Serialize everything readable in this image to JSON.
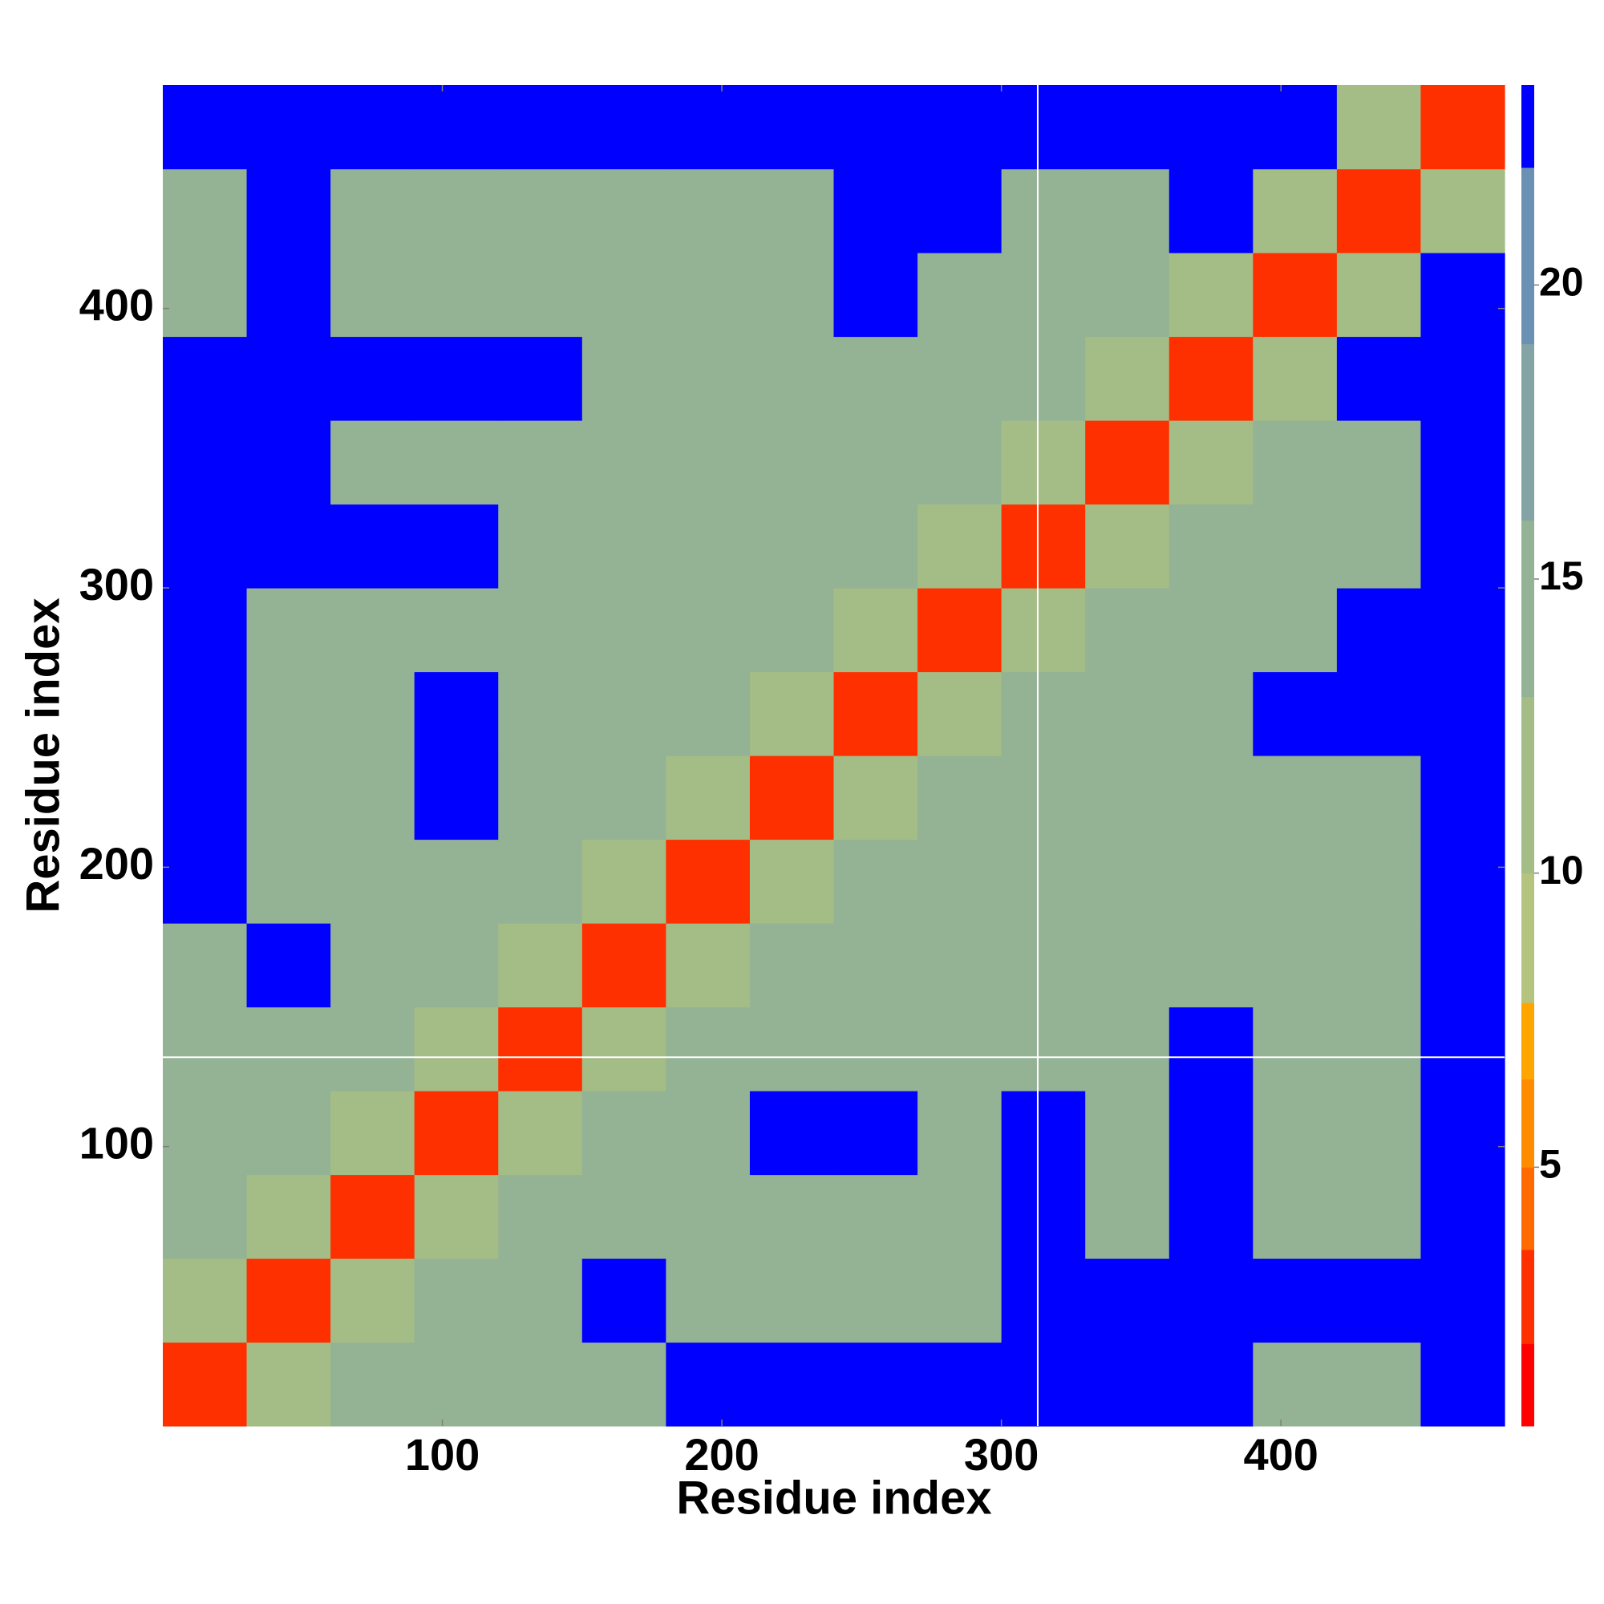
{
  "chart_data": {
    "type": "heatmap",
    "x_label": "Residue index",
    "y_label": "Residue index",
    "xlim": [
      0,
      480
    ],
    "ylim": [
      0,
      480
    ],
    "xticks": [
      100,
      200,
      300,
      400
    ],
    "yticks": [
      100,
      200,
      300,
      400
    ],
    "x_bins": [
      0,
      30,
      60,
      90,
      120,
      150,
      180,
      210,
      240,
      270,
      300,
      330,
      360,
      390,
      420,
      450,
      480
    ],
    "y_bins": [
      0,
      30,
      60,
      90,
      120,
      150,
      180,
      210,
      240,
      270,
      300,
      330,
      360,
      390,
      420,
      450,
      480
    ],
    "z": [
      [
        3,
        11,
        13,
        13,
        13,
        13,
        23,
        23,
        23,
        23,
        23,
        23,
        23,
        13,
        13,
        23
      ],
      [
        11,
        3,
        11,
        13,
        13,
        23,
        13,
        13,
        13,
        13,
        23,
        23,
        23,
        23,
        23,
        23
      ],
      [
        13,
        11,
        3,
        11,
        13,
        13,
        13,
        13,
        13,
        13,
        23,
        13,
        23,
        13,
        13,
        23
      ],
      [
        13,
        13,
        11,
        3,
        11,
        13,
        13,
        23,
        23,
        13,
        23,
        13,
        23,
        13,
        13,
        23
      ],
      [
        13,
        13,
        13,
        11,
        3,
        11,
        13,
        13,
        13,
        13,
        13,
        13,
        23,
        13,
        13,
        23
      ],
      [
        13,
        23,
        13,
        13,
        11,
        3,
        11,
        13,
        13,
        13,
        13,
        13,
        13,
        13,
        13,
        23
      ],
      [
        23,
        13,
        13,
        13,
        13,
        11,
        3,
        11,
        13,
        13,
        13,
        13,
        13,
        13,
        13,
        23
      ],
      [
        23,
        13,
        13,
        23,
        13,
        13,
        11,
        3,
        11,
        13,
        13,
        13,
        13,
        13,
        13,
        23
      ],
      [
        23,
        13,
        13,
        23,
        13,
        13,
        13,
        11,
        3,
        11,
        13,
        13,
        13,
        23,
        23,
        23
      ],
      [
        23,
        13,
        13,
        13,
        13,
        13,
        13,
        13,
        11,
        3,
        11,
        13,
        13,
        13,
        23,
        23
      ],
      [
        23,
        23,
        23,
        23,
        13,
        13,
        13,
        13,
        13,
        11,
        3,
        11,
        13,
        13,
        13,
        23
      ],
      [
        23,
        23,
        13,
        13,
        13,
        13,
        13,
        13,
        13,
        13,
        11,
        3,
        11,
        13,
        13,
        23
      ],
      [
        23,
        23,
        23,
        23,
        23,
        13,
        13,
        13,
        13,
        13,
        13,
        11,
        3,
        11,
        23,
        23
      ],
      [
        13,
        23,
        13,
        13,
        13,
        13,
        13,
        13,
        23,
        13,
        13,
        13,
        11,
        3,
        11,
        23
      ],
      [
        13,
        23,
        13,
        13,
        13,
        13,
        13,
        13,
        23,
        23,
        13,
        13,
        23,
        11,
        3,
        11
      ],
      [
        23,
        23,
        23,
        23,
        23,
        23,
        23,
        23,
        23,
        23,
        23,
        23,
        23,
        23,
        11,
        3
      ]
    ],
    "zlim": [
      0.6,
      23.4
    ],
    "zticks": [
      5,
      10,
      15,
      20
    ],
    "color_bands": [
      [
        0.6,
        2.0,
        "#ff0000"
      ],
      [
        2.0,
        3.6,
        "#ff3000"
      ],
      [
        3.6,
        5.0,
        "#ff6a00"
      ],
      [
        5.0,
        6.5,
        "#ff8c00"
      ],
      [
        6.5,
        7.8,
        "#ffa500"
      ],
      [
        7.8,
        10,
        "#b4c47e"
      ],
      [
        10,
        13,
        "#a4bd86"
      ],
      [
        13,
        16,
        "#94b294"
      ],
      [
        16,
        19,
        "#84a3a4"
      ],
      [
        19,
        22,
        "#6a90b4"
      ],
      [
        22,
        23.4,
        "#0000ff"
      ]
    ],
    "separators": {
      "x": 313,
      "y": 132
    }
  }
}
